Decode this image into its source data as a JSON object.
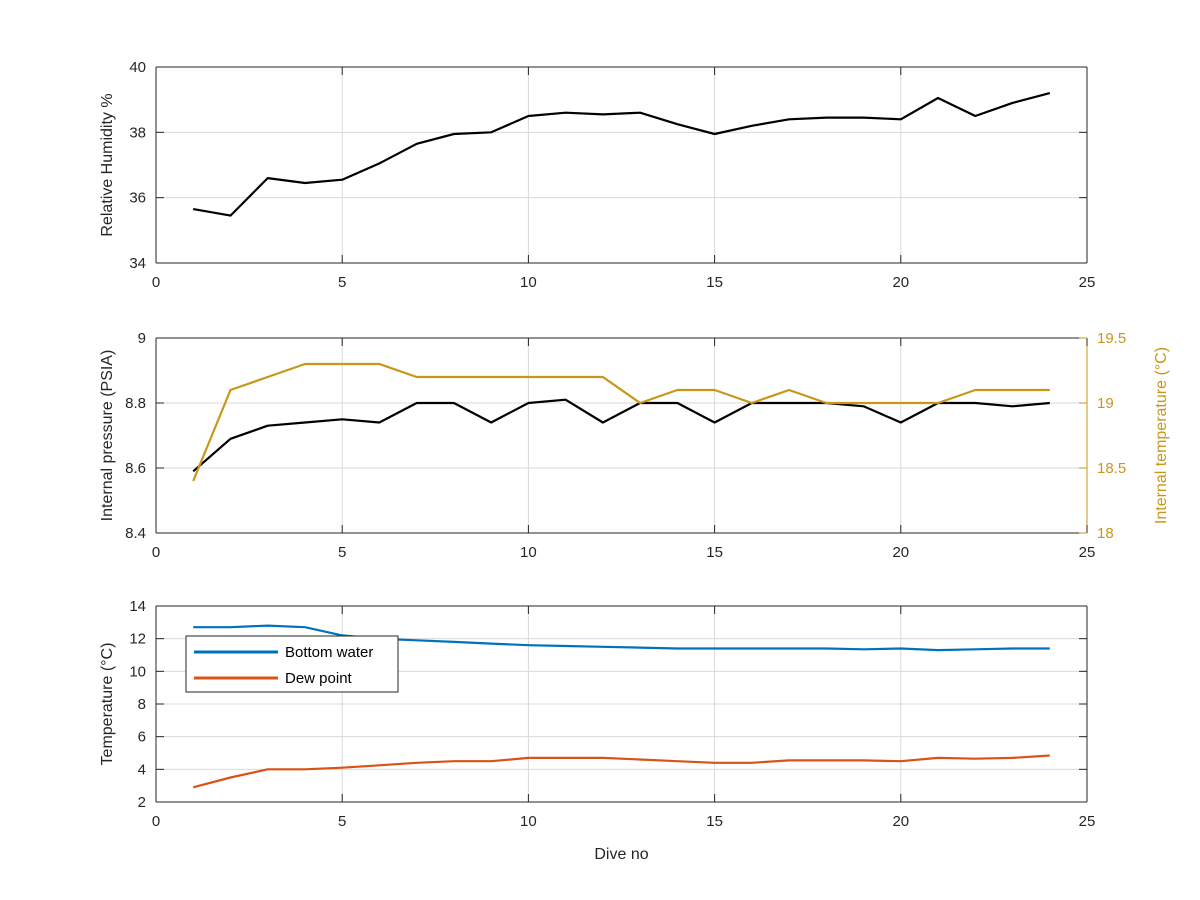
{
  "figure": {
    "xlabel": "Dive no"
  },
  "colors": {
    "black": "#000000",
    "temp_gold": "#c9961a",
    "bottom_water": "#0072bd",
    "dew_point": "#d95319",
    "grid": "#d9d9d9",
    "axis": "#262626"
  },
  "chart_data": [
    {
      "type": "line",
      "xlabel": "",
      "ylabel": "Relative Humidity %",
      "xlim": [
        0,
        25
      ],
      "ylim": [
        34,
        40
      ],
      "xticks": [
        0,
        5,
        10,
        15,
        20,
        25
      ],
      "yticks": [
        34,
        36,
        38,
        40
      ],
      "grid": true,
      "x": [
        1,
        2,
        3,
        4,
        5,
        6,
        7,
        8,
        9,
        10,
        11,
        12,
        13,
        14,
        15,
        16,
        17,
        18,
        19,
        20,
        21,
        22,
        23,
        24
      ],
      "series": [
        {
          "color": "#000000",
          "values": [
            35.65,
            35.45,
            36.6,
            36.45,
            36.55,
            37.05,
            37.65,
            37.95,
            38.0,
            38.5,
            38.6,
            38.55,
            38.6,
            38.25,
            37.95,
            38.2,
            38.4,
            38.45,
            38.45,
            38.4,
            39.05,
            38.5,
            38.9,
            39.2
          ]
        }
      ]
    },
    {
      "type": "line",
      "xlabel": "",
      "ylabel": "Internal pressure (PSIA)",
      "ylabel_right": "Internal temperature (°C)",
      "xlim": [
        0,
        25
      ],
      "ylim": [
        8.4,
        9.0
      ],
      "ylim_right": [
        18,
        19.5
      ],
      "xticks": [
        0,
        5,
        10,
        15,
        20,
        25
      ],
      "yticks": [
        8.4,
        8.6,
        8.8,
        9.0
      ],
      "ytick_labels": [
        "8.4",
        "8.6",
        "8.8",
        "9"
      ],
      "yticks_right": [
        18,
        18.5,
        19,
        19.5
      ],
      "ytick_labels_right": [
        "18",
        "18.5",
        "19",
        "19.5"
      ],
      "grid": true,
      "x": [
        1,
        2,
        3,
        4,
        5,
        6,
        7,
        8,
        9,
        10,
        11,
        12,
        13,
        14,
        15,
        16,
        17,
        18,
        19,
        20,
        21,
        22,
        23,
        24
      ],
      "series": [
        {
          "axis": "left",
          "color": "#000000",
          "values": [
            8.59,
            8.69,
            8.73,
            8.74,
            8.75,
            8.74,
            8.8,
            8.8,
            8.74,
            8.8,
            8.81,
            8.74,
            8.8,
            8.8,
            8.74,
            8.8,
            8.8,
            8.8,
            8.79,
            8.74,
            8.8,
            8.8,
            8.79,
            8.8
          ]
        },
        {
          "axis": "right",
          "color": "#c9961a",
          "values": [
            18.4,
            19.1,
            19.2,
            19.3,
            19.3,
            19.3,
            19.2,
            19.2,
            19.2,
            19.2,
            19.2,
            19.2,
            19.0,
            19.1,
            19.1,
            19.0,
            19.1,
            19.0,
            19.0,
            19.0,
            19.0,
            19.1,
            19.1,
            19.1
          ]
        }
      ]
    },
    {
      "type": "line",
      "xlabel": "Dive no",
      "ylabel": "Temperature (°C)",
      "xlim": [
        0,
        25
      ],
      "ylim": [
        2,
        14
      ],
      "xticks": [
        0,
        5,
        10,
        15,
        20,
        25
      ],
      "yticks": [
        2,
        4,
        6,
        8,
        10,
        12,
        14
      ],
      "grid": true,
      "legend": "top-left",
      "x": [
        1,
        2,
        3,
        4,
        5,
        6,
        7,
        8,
        9,
        10,
        11,
        12,
        13,
        14,
        15,
        16,
        17,
        18,
        19,
        20,
        21,
        22,
        23,
        24
      ],
      "series": [
        {
          "name": "Bottom water",
          "color": "#0072bd",
          "values": [
            12.7,
            12.7,
            12.8,
            12.7,
            12.2,
            12.0,
            11.9,
            11.8,
            11.7,
            11.6,
            11.55,
            11.5,
            11.45,
            11.4,
            11.4,
            11.4,
            11.4,
            11.4,
            11.35,
            11.4,
            11.3,
            11.35,
            11.4,
            11.4
          ]
        },
        {
          "name": "Dew point",
          "color": "#d95319",
          "values": [
            2.9,
            3.5,
            4.0,
            4.0,
            4.1,
            4.25,
            4.4,
            4.5,
            4.5,
            4.7,
            4.7,
            4.7,
            4.6,
            4.5,
            4.4,
            4.4,
            4.55,
            4.55,
            4.55,
            4.5,
            4.7,
            4.65,
            4.7,
            4.85
          ]
        }
      ]
    }
  ]
}
